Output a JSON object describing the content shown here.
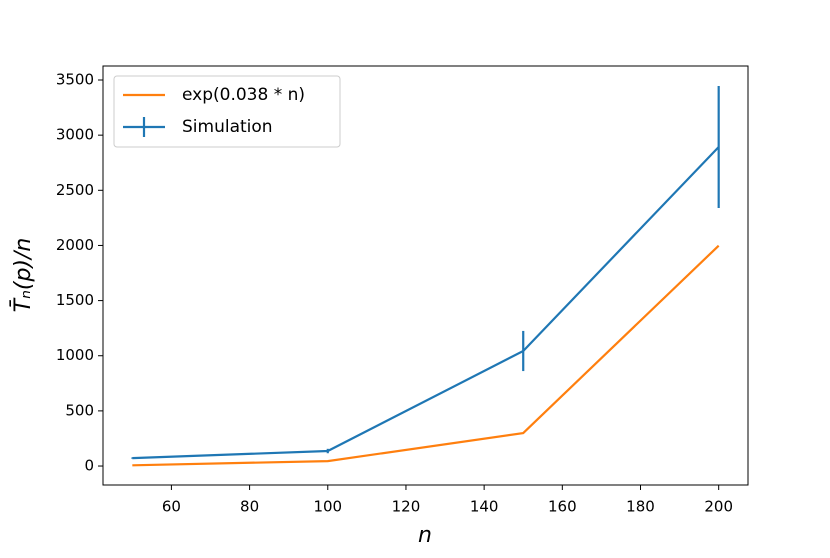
{
  "chart_data": {
    "type": "line",
    "x_label": "n",
    "y_label": "T̄ₙ(p)/n",
    "xlim": [
      42.5,
      207.5
    ],
    "xticks": [
      60,
      80,
      100,
      120,
      140,
      160,
      180,
      200
    ],
    "ylim": [
      -172,
      3627
    ],
    "yticks": [
      0,
      500,
      1000,
      1500,
      2000,
      2500,
      3000,
      3500
    ],
    "legend": "upper left",
    "series": [
      {
        "name": "exp(0.038 * n)",
        "color": "#ff7f0e",
        "x": [
          50,
          100,
          150,
          200
        ],
        "values": [
          6.69,
          44.7,
          299,
          1998
        ]
      },
      {
        "name": "Simulation",
        "color": "#1f77b4",
        "x": [
          50,
          100,
          150,
          200
        ],
        "values": [
          72,
          136,
          1043,
          2893
        ],
        "errors": [
          5,
          20,
          182,
          553
        ]
      }
    ]
  }
}
